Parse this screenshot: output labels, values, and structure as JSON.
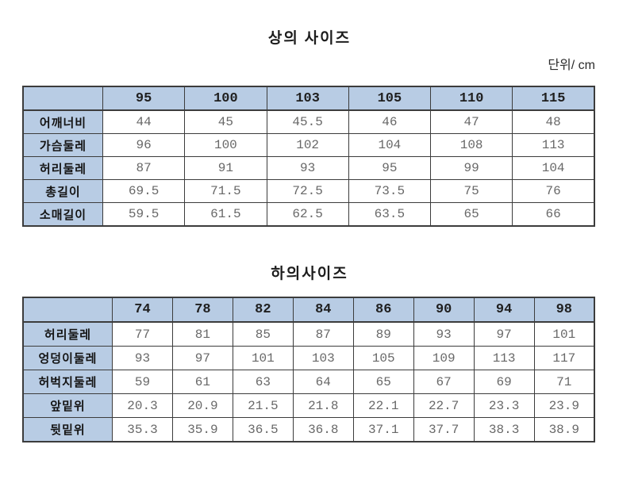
{
  "page": {
    "unit_label": "단위/ cm"
  },
  "colors": {
    "header_bg": "#b8cce4",
    "border": "#3c3c3c",
    "value_text": "#686868",
    "label_text": "#141414"
  },
  "top_table": {
    "title": "상의 사이즈",
    "sizes": [
      "95",
      "100",
      "103",
      "105",
      "110",
      "115"
    ],
    "rows": [
      {
        "label": "어깨너비",
        "values": [
          "44",
          "45",
          "45.5",
          "46",
          "47",
          "48"
        ]
      },
      {
        "label": "가슴둘레",
        "values": [
          "96",
          "100",
          "102",
          "104",
          "108",
          "113"
        ]
      },
      {
        "label": "허리둘레",
        "values": [
          "87",
          "91",
          "93",
          "95",
          "99",
          "104"
        ]
      },
      {
        "label": "총길이",
        "values": [
          "69.5",
          "71.5",
          "72.5",
          "73.5",
          "75",
          "76"
        ]
      },
      {
        "label": "소매길이",
        "values": [
          "59.5",
          "61.5",
          "62.5",
          "63.5",
          "65",
          "66"
        ]
      }
    ]
  },
  "bottom_table": {
    "title": "하의사이즈",
    "sizes": [
      "74",
      "78",
      "82",
      "84",
      "86",
      "90",
      "94",
      "98"
    ],
    "rows": [
      {
        "label": "허리둘레",
        "values": [
          "77",
          "81",
          "85",
          "87",
          "89",
          "93",
          "97",
          "101"
        ]
      },
      {
        "label": "엉덩이둘레",
        "values": [
          "93",
          "97",
          "101",
          "103",
          "105",
          "109",
          "113",
          "117"
        ]
      },
      {
        "label": "허벅지둘레",
        "values": [
          "59",
          "61",
          "63",
          "64",
          "65",
          "67",
          "69",
          "71"
        ]
      },
      {
        "label": "앞밑위",
        "values": [
          "20.3",
          "20.9",
          "21.5",
          "21.8",
          "22.1",
          "22.7",
          "23.3",
          "23.9"
        ]
      },
      {
        "label": "뒷밑위",
        "values": [
          "35.3",
          "35.9",
          "36.5",
          "36.8",
          "37.1",
          "37.7",
          "38.3",
          "38.9"
        ]
      }
    ]
  }
}
